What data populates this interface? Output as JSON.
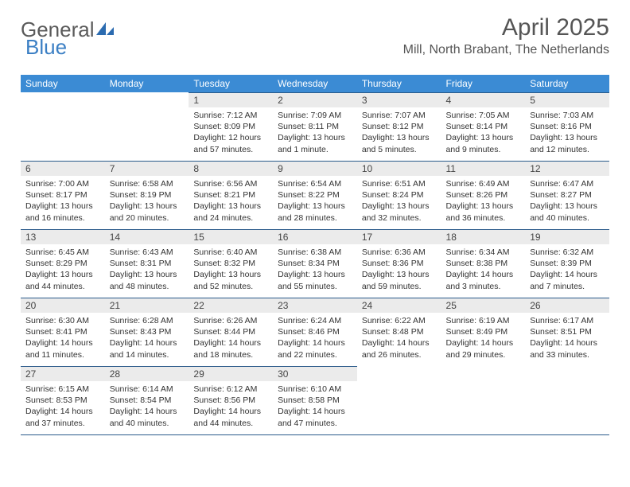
{
  "brand": {
    "part1": "General",
    "part2": "Blue"
  },
  "title": "April 2025",
  "location": "Mill, North Brabant, The Netherlands",
  "colors": {
    "header_bg": "#3b8bd4",
    "header_text": "#ffffff",
    "daynum_bg": "#ebebeb",
    "rule": "#2a5a8a",
    "logo_gray": "#5a5a5a",
    "logo_blue": "#3b7fc4",
    "text": "#333333",
    "title_color": "#555555"
  },
  "weekdays": [
    "Sunday",
    "Monday",
    "Tuesday",
    "Wednesday",
    "Thursday",
    "Friday",
    "Saturday"
  ],
  "weeks": [
    [
      {
        "n": "",
        "sr": "",
        "ss": "",
        "dl": ""
      },
      {
        "n": "",
        "sr": "",
        "ss": "",
        "dl": ""
      },
      {
        "n": "1",
        "sr": "Sunrise: 7:12 AM",
        "ss": "Sunset: 8:09 PM",
        "dl": "Daylight: 12 hours and 57 minutes."
      },
      {
        "n": "2",
        "sr": "Sunrise: 7:09 AM",
        "ss": "Sunset: 8:11 PM",
        "dl": "Daylight: 13 hours and 1 minute."
      },
      {
        "n": "3",
        "sr": "Sunrise: 7:07 AM",
        "ss": "Sunset: 8:12 PM",
        "dl": "Daylight: 13 hours and 5 minutes."
      },
      {
        "n": "4",
        "sr": "Sunrise: 7:05 AM",
        "ss": "Sunset: 8:14 PM",
        "dl": "Daylight: 13 hours and 9 minutes."
      },
      {
        "n": "5",
        "sr": "Sunrise: 7:03 AM",
        "ss": "Sunset: 8:16 PM",
        "dl": "Daylight: 13 hours and 12 minutes."
      }
    ],
    [
      {
        "n": "6",
        "sr": "Sunrise: 7:00 AM",
        "ss": "Sunset: 8:17 PM",
        "dl": "Daylight: 13 hours and 16 minutes."
      },
      {
        "n": "7",
        "sr": "Sunrise: 6:58 AM",
        "ss": "Sunset: 8:19 PM",
        "dl": "Daylight: 13 hours and 20 minutes."
      },
      {
        "n": "8",
        "sr": "Sunrise: 6:56 AM",
        "ss": "Sunset: 8:21 PM",
        "dl": "Daylight: 13 hours and 24 minutes."
      },
      {
        "n": "9",
        "sr": "Sunrise: 6:54 AM",
        "ss": "Sunset: 8:22 PM",
        "dl": "Daylight: 13 hours and 28 minutes."
      },
      {
        "n": "10",
        "sr": "Sunrise: 6:51 AM",
        "ss": "Sunset: 8:24 PM",
        "dl": "Daylight: 13 hours and 32 minutes."
      },
      {
        "n": "11",
        "sr": "Sunrise: 6:49 AM",
        "ss": "Sunset: 8:26 PM",
        "dl": "Daylight: 13 hours and 36 minutes."
      },
      {
        "n": "12",
        "sr": "Sunrise: 6:47 AM",
        "ss": "Sunset: 8:27 PM",
        "dl": "Daylight: 13 hours and 40 minutes."
      }
    ],
    [
      {
        "n": "13",
        "sr": "Sunrise: 6:45 AM",
        "ss": "Sunset: 8:29 PM",
        "dl": "Daylight: 13 hours and 44 minutes."
      },
      {
        "n": "14",
        "sr": "Sunrise: 6:43 AM",
        "ss": "Sunset: 8:31 PM",
        "dl": "Daylight: 13 hours and 48 minutes."
      },
      {
        "n": "15",
        "sr": "Sunrise: 6:40 AM",
        "ss": "Sunset: 8:32 PM",
        "dl": "Daylight: 13 hours and 52 minutes."
      },
      {
        "n": "16",
        "sr": "Sunrise: 6:38 AM",
        "ss": "Sunset: 8:34 PM",
        "dl": "Daylight: 13 hours and 55 minutes."
      },
      {
        "n": "17",
        "sr": "Sunrise: 6:36 AM",
        "ss": "Sunset: 8:36 PM",
        "dl": "Daylight: 13 hours and 59 minutes."
      },
      {
        "n": "18",
        "sr": "Sunrise: 6:34 AM",
        "ss": "Sunset: 8:38 PM",
        "dl": "Daylight: 14 hours and 3 minutes."
      },
      {
        "n": "19",
        "sr": "Sunrise: 6:32 AM",
        "ss": "Sunset: 8:39 PM",
        "dl": "Daylight: 14 hours and 7 minutes."
      }
    ],
    [
      {
        "n": "20",
        "sr": "Sunrise: 6:30 AM",
        "ss": "Sunset: 8:41 PM",
        "dl": "Daylight: 14 hours and 11 minutes."
      },
      {
        "n": "21",
        "sr": "Sunrise: 6:28 AM",
        "ss": "Sunset: 8:43 PM",
        "dl": "Daylight: 14 hours and 14 minutes."
      },
      {
        "n": "22",
        "sr": "Sunrise: 6:26 AM",
        "ss": "Sunset: 8:44 PM",
        "dl": "Daylight: 14 hours and 18 minutes."
      },
      {
        "n": "23",
        "sr": "Sunrise: 6:24 AM",
        "ss": "Sunset: 8:46 PM",
        "dl": "Daylight: 14 hours and 22 minutes."
      },
      {
        "n": "24",
        "sr": "Sunrise: 6:22 AM",
        "ss": "Sunset: 8:48 PM",
        "dl": "Daylight: 14 hours and 26 minutes."
      },
      {
        "n": "25",
        "sr": "Sunrise: 6:19 AM",
        "ss": "Sunset: 8:49 PM",
        "dl": "Daylight: 14 hours and 29 minutes."
      },
      {
        "n": "26",
        "sr": "Sunrise: 6:17 AM",
        "ss": "Sunset: 8:51 PM",
        "dl": "Daylight: 14 hours and 33 minutes."
      }
    ],
    [
      {
        "n": "27",
        "sr": "Sunrise: 6:15 AM",
        "ss": "Sunset: 8:53 PM",
        "dl": "Daylight: 14 hours and 37 minutes."
      },
      {
        "n": "28",
        "sr": "Sunrise: 6:14 AM",
        "ss": "Sunset: 8:54 PM",
        "dl": "Daylight: 14 hours and 40 minutes."
      },
      {
        "n": "29",
        "sr": "Sunrise: 6:12 AM",
        "ss": "Sunset: 8:56 PM",
        "dl": "Daylight: 14 hours and 44 minutes."
      },
      {
        "n": "30",
        "sr": "Sunrise: 6:10 AM",
        "ss": "Sunset: 8:58 PM",
        "dl": "Daylight: 14 hours and 47 minutes."
      },
      {
        "n": "",
        "sr": "",
        "ss": "",
        "dl": ""
      },
      {
        "n": "",
        "sr": "",
        "ss": "",
        "dl": ""
      },
      {
        "n": "",
        "sr": "",
        "ss": "",
        "dl": ""
      }
    ]
  ]
}
